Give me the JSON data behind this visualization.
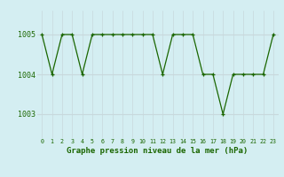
{
  "x": [
    0,
    1,
    2,
    3,
    4,
    5,
    6,
    7,
    8,
    9,
    10,
    11,
    12,
    13,
    14,
    15,
    16,
    17,
    18,
    19,
    20,
    21,
    22,
    23
  ],
  "y": [
    1005,
    1004,
    1005,
    1005,
    1004,
    1005,
    1005,
    1005,
    1005,
    1005,
    1005,
    1005,
    1004,
    1005,
    1005,
    1005,
    1004,
    1004,
    1003,
    1004,
    1004,
    1004,
    1004,
    1005
  ],
  "line_color": "#1a6600",
  "marker_color": "#1a6600",
  "bg_color": "#d4eef2",
  "grid_h_color": "#c8d8dc",
  "grid_v_color": "#c8d8dc",
  "xlabel": "Graphe pression niveau de la mer (hPa)",
  "xlabel_color": "#1a6600",
  "tick_label_color": "#1a6600",
  "ylim": [
    1002.4,
    1005.6
  ],
  "yticks": [
    1003,
    1004,
    1005
  ],
  "xlim": [
    -0.5,
    23.5
  ],
  "xticks": [
    0,
    1,
    2,
    3,
    4,
    5,
    6,
    7,
    8,
    9,
    10,
    11,
    12,
    13,
    14,
    15,
    16,
    17,
    18,
    19,
    20,
    21,
    22,
    23
  ],
  "xtick_labels": [
    "0",
    "1",
    "2",
    "3",
    "4",
    "5",
    "6",
    "7",
    "8",
    "9",
    "10",
    "11",
    "12",
    "13",
    "14",
    "15",
    "16",
    "17",
    "18",
    "19",
    "20",
    "21",
    "22",
    "23"
  ]
}
